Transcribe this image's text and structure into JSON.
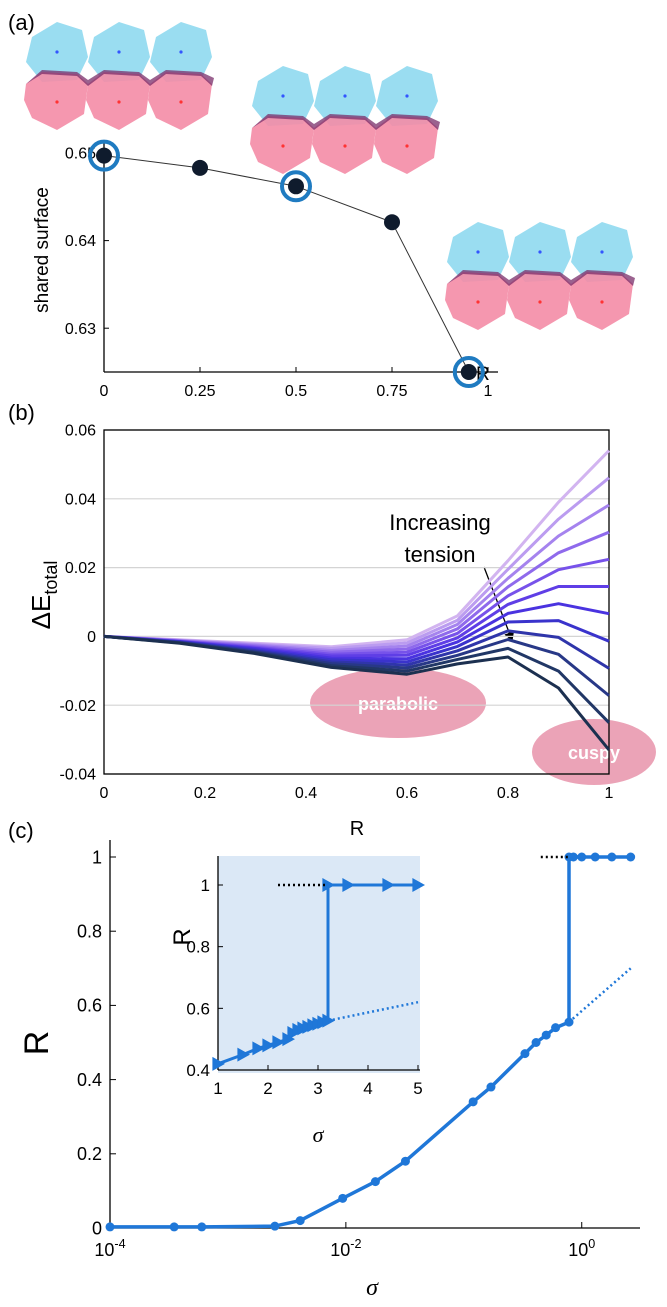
{
  "chart_data": [
    {
      "type": "line",
      "panel_label": "(a)",
      "ylabel": "shared surface",
      "xlabel": "R",
      "x": [
        0,
        0.25,
        0.5,
        0.75,
        0.95
      ],
      "values": [
        0.6497,
        0.6483,
        0.6462,
        0.6421,
        0.625
      ],
      "color": "#0f1b2d",
      "highlight": [
        0,
        2,
        4
      ],
      "highlight_color": "#1f7bc1",
      "xlim": [
        0,
        1
      ],
      "xticks": [
        0,
        0.25,
        0.5,
        0.75,
        1
      ],
      "ylim": [
        0.625,
        0.65
      ],
      "yticks": [
        0.63,
        0.64,
        0.65
      ]
    },
    {
      "type": "line",
      "panel_label": "(b)",
      "ylabel": "ΔE",
      "ylabel_sub": "total",
      "xlabel": "R",
      "annotation_lines": [
        "Increasing",
        "tension"
      ],
      "regions": [
        "parabolic",
        "cuspy"
      ],
      "x": [
        0,
        0.15,
        0.3,
        0.45,
        0.6,
        0.7,
        0.8,
        0.9,
        1
      ],
      "series": [
        {
          "color": "#d2b4f0",
          "values": [
            0,
            -0.001,
            -0.002,
            -0.003,
            -0.001,
            0.006,
            0.022,
            0.039,
            0.054
          ]
        },
        {
          "color": "#bb9cf0",
          "values": [
            0,
            -0.0011,
            -0.0023,
            -0.0035,
            -0.0019,
            0.0047,
            0.0195,
            0.0341,
            0.0461
          ]
        },
        {
          "color": "#a583ee",
          "values": [
            0,
            -0.0012,
            -0.0025,
            -0.0041,
            -0.0028,
            0.0035,
            0.0169,
            0.0292,
            0.0382
          ]
        },
        {
          "color": "#8f6aec",
          "values": [
            0,
            -0.0013,
            -0.0028,
            -0.0046,
            -0.0037,
            0.0022,
            0.0144,
            0.0243,
            0.0303
          ]
        },
        {
          "color": "#7752ea",
          "values": [
            0,
            -0.0014,
            -0.0031,
            -0.0052,
            -0.0046,
            0.0009,
            0.0118,
            0.0194,
            0.0224
          ]
        },
        {
          "color": "#5f3ee6",
          "values": [
            0,
            -0.0015,
            -0.0034,
            -0.0057,
            -0.0055,
            -0.0004,
            0.0093,
            0.0145,
            0.0145
          ]
        },
        {
          "color": "#4a33e0",
          "values": [
            0,
            -0.0015,
            -0.0036,
            -0.0063,
            -0.0065,
            -0.0016,
            0.0067,
            0.0095,
            0.0066
          ]
        },
        {
          "color": "#3a33cc",
          "values": [
            0,
            -0.0016,
            -0.0039,
            -0.0068,
            -0.0074,
            -0.0029,
            0.0042,
            0.0046,
            -0.0014
          ]
        },
        {
          "color": "#2f35aa",
          "values": [
            0,
            -0.0017,
            -0.0042,
            -0.0074,
            -0.0083,
            -0.0042,
            0.0016,
            -0.0003,
            -0.0093
          ]
        },
        {
          "color": "#283887",
          "values": [
            0,
            -0.0018,
            -0.0045,
            -0.0079,
            -0.0092,
            -0.0055,
            -0.0009,
            -0.0052,
            -0.0172
          ]
        },
        {
          "color": "#213766",
          "values": [
            0,
            -0.0019,
            -0.0047,
            -0.0085,
            -0.0101,
            -0.0067,
            -0.0035,
            -0.0101,
            -0.0251
          ]
        },
        {
          "color": "#1c3050",
          "values": [
            0,
            -0.002,
            -0.005,
            -0.009,
            -0.011,
            -0.008,
            -0.006,
            -0.015,
            -0.033
          ]
        }
      ],
      "grid": true,
      "xlim": [
        0,
        1
      ],
      "xticks": [
        0,
        0.2,
        0.4,
        0.6,
        0.8,
        1
      ],
      "ylim": [
        -0.04,
        0.06
      ],
      "yticks": [
        -0.04,
        -0.02,
        0,
        0.02,
        0.04,
        0.06
      ]
    },
    {
      "type": "line",
      "panel_label": "(c)",
      "ylabel": "R",
      "xlabel": "σ",
      "xscale": "log",
      "series": [
        {
          "color": "#1f77d8",
          "marker": "circle",
          "x": [
            0.0001,
            0.00035,
            0.0006,
            0.0025,
            0.0041,
            0.0094,
            0.0178,
            0.032,
            0.12,
            0.17,
            0.33,
            0.41,
            0.5,
            0.6,
            0.78,
            0.78,
            0.85,
            1,
            1.3,
            1.8,
            2.6
          ],
          "values": [
            0.003,
            0.003,
            0.003,
            0.005,
            0.02,
            0.08,
            0.125,
            0.18,
            0.34,
            0.38,
            0.47,
            0.5,
            0.52,
            0.54,
            0.555,
            1,
            1,
            1,
            1,
            1,
            1
          ]
        },
        {
          "color": "#1f77d8",
          "style": "dotted",
          "x": [
            0.78,
            2.6
          ],
          "values": [
            0.555,
            0.7
          ]
        },
        {
          "color": "#000000",
          "style": "dotted",
          "x": [
            0.45,
            0.78
          ],
          "values": [
            1,
            1
          ]
        }
      ],
      "xlim": [
        0.0001,
        3
      ],
      "xticks": [
        {
          "value": 0.0001,
          "label": "10",
          "exp": "-4"
        },
        {
          "value": 0.01,
          "label": "10",
          "exp": "-2"
        },
        {
          "value": 1,
          "label": "10",
          "exp": "0"
        }
      ],
      "ylim": [
        0,
        1
      ],
      "yticks": [
        0,
        0.2,
        0.4,
        0.6,
        0.8,
        1
      ]
    },
    {
      "type": "line",
      "ylabel": "R",
      "xlabel": "σ",
      "series": [
        {
          "color": "#1f77d8",
          "marker": "triangle",
          "x": [
            1,
            1.5,
            1.8,
            2,
            2.2,
            2.4,
            2.5,
            2.6,
            2.7,
            2.8,
            2.9,
            3,
            3.1,
            3.2,
            3.2,
            3.6,
            4.4,
            5
          ],
          "values": [
            0.42,
            0.45,
            0.47,
            0.48,
            0.49,
            0.5,
            0.52,
            0.53,
            0.535,
            0.54,
            0.545,
            0.55,
            0.555,
            0.56,
            1,
            1,
            1,
            1
          ]
        },
        {
          "color": "#1f77d8",
          "style": "dotted",
          "x": [
            3.2,
            5
          ],
          "values": [
            0.56,
            0.62
          ]
        },
        {
          "color": "#000000",
          "style": "dotted",
          "x": [
            2.2,
            3.2
          ],
          "values": [
            1,
            1
          ]
        }
      ],
      "xlim": [
        1,
        5
      ],
      "xticks": [
        1,
        2,
        3,
        4,
        5
      ],
      "ylim": [
        0.4,
        1
      ],
      "yticks": [
        0.4,
        0.6,
        0.8,
        1
      ]
    }
  ]
}
